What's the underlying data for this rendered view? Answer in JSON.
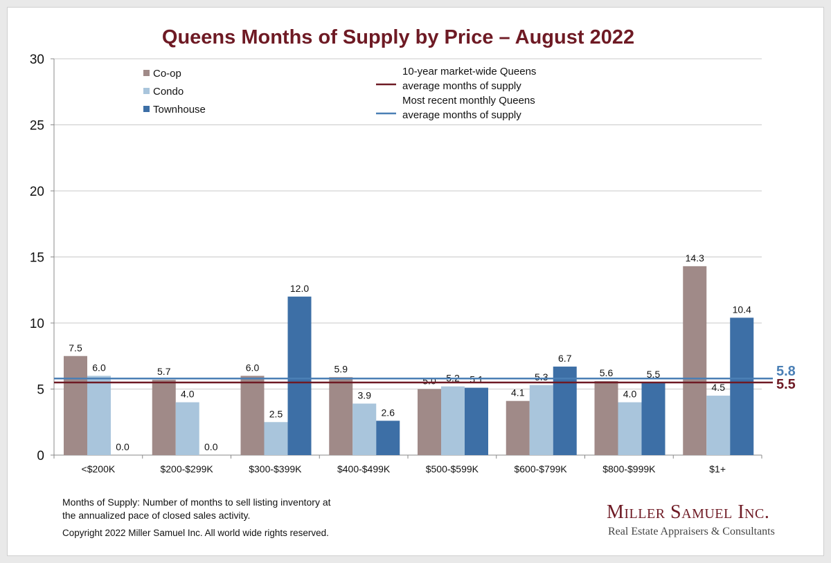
{
  "chart_data": {
    "type": "bar",
    "title": "Queens Months of Supply by Price – August 2022",
    "categories": [
      "<$200K",
      "$200-$299K",
      "$300-$399K",
      "$400-$499K",
      "$500-$599K",
      "$600-$799K",
      "$800-$999K",
      "$1+"
    ],
    "series": [
      {
        "name": "Co-op",
        "color": "#a08a88",
        "values": [
          7.5,
          5.7,
          6.0,
          5.9,
          5.0,
          4.1,
          5.6,
          14.3
        ],
        "labels": [
          "7.5",
          "5.7",
          "6.0",
          "5.9",
          "5.0",
          "4.1",
          "5.6",
          "14.3"
        ]
      },
      {
        "name": "Condo",
        "color": "#a9c5dc",
        "values": [
          6.0,
          4.0,
          2.5,
          3.9,
          5.2,
          5.3,
          4.0,
          4.5
        ],
        "labels": [
          "6.0",
          "4.0",
          "2.5",
          "3.9",
          "5.2",
          "5.3",
          "4.0",
          "4.5"
        ]
      },
      {
        "name": "Townhouse",
        "color": "#3d6fa6",
        "values": [
          0.0,
          0.0,
          12.0,
          2.6,
          5.1,
          6.7,
          5.5,
          10.4
        ],
        "labels": [
          "0.0",
          "0.0",
          "12.0",
          "2.6",
          "5.1",
          "6.7",
          "5.5",
          "10.4"
        ]
      }
    ],
    "reference_lines": [
      {
        "label_line1": "10-year market-wide Queens",
        "label_line2": "average months of supply",
        "value": 5.5,
        "value_label": "5.5",
        "color": "#6e1a24"
      },
      {
        "label_line1": "Most recent monthly Queens",
        "label_line2": "average months of supply",
        "value": 5.8,
        "value_label": "5.8",
        "color": "#4a7fb5"
      }
    ],
    "ylim": [
      0,
      30
    ],
    "yticks": [
      0,
      5,
      10,
      15,
      20,
      25,
      30
    ],
    "ytick_labels": [
      "0",
      "5",
      "10",
      "15",
      "20",
      "25",
      "30"
    ],
    "grid": true,
    "legend": "top-left"
  },
  "footer": {
    "note_line1": "Months of Supply: Number of months to sell listing inventory at",
    "note_line2": "the annualized pace of closed sales activity.",
    "copyright": "Copyright 2022 Miller Samuel Inc.  All world wide rights reserved."
  },
  "logo": {
    "name": "Miller Samuel Inc.",
    "tagline": "Real Estate Appraisers & Consultants"
  }
}
